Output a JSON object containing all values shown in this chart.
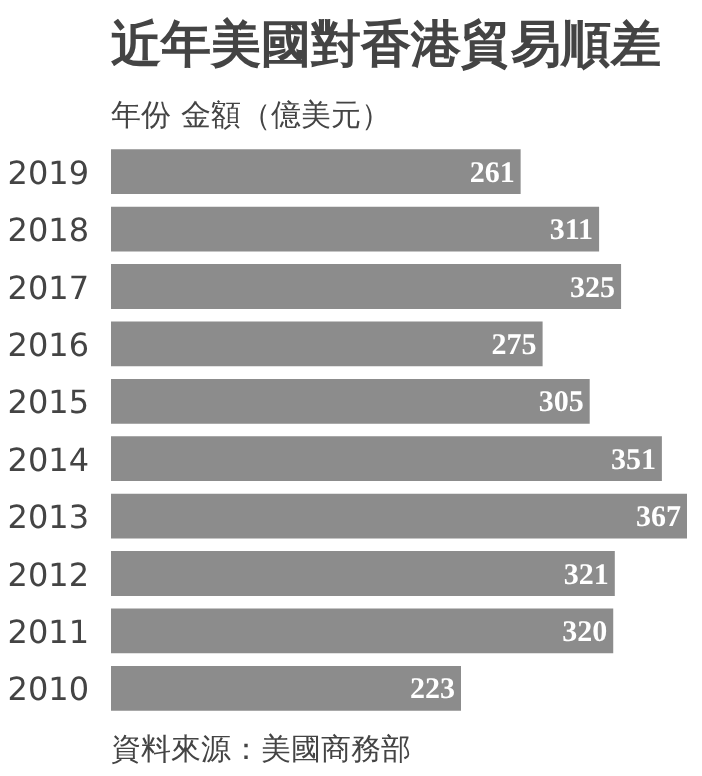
{
  "chart_data": {
    "type": "bar",
    "orientation": "horizontal",
    "title": "近年美國對香港貿易順差",
    "subtitle": "年份  金額（億美元）",
    "categories": [
      "2019",
      "2018",
      "2017",
      "2016",
      "2015",
      "2014",
      "2013",
      "2012",
      "2011",
      "2010"
    ],
    "values": [
      261,
      311,
      325,
      275,
      305,
      351,
      367,
      321,
      320,
      223
    ],
    "color": "#8c8c8c",
    "data_labels": true,
    "grid": false,
    "tick_labels": "y",
    "annotations": [
      "資料來源：美國商務部"
    ]
  }
}
